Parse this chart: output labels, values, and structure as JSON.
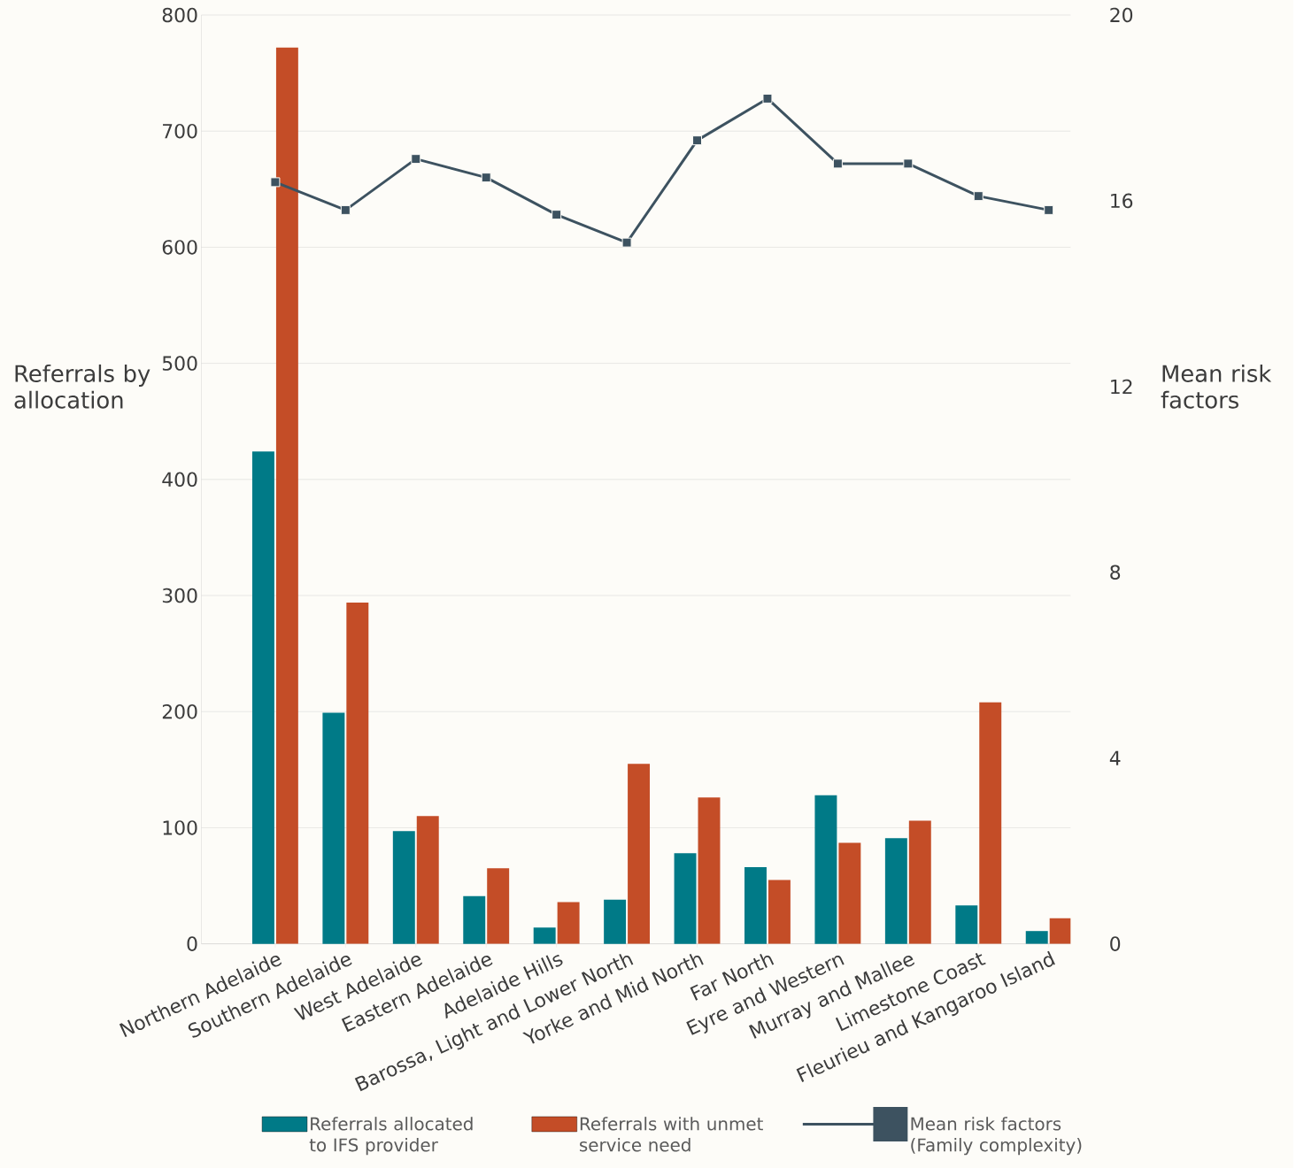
{
  "chart_data": {
    "type": "bar",
    "categories": [
      "Northern Adelaide",
      "Southern Adelaide",
      "West Adelaide",
      "Eastern Adelaide",
      "Adelaide Hills",
      "Barossa, Light and Lower North",
      "Yorke and Mid North",
      "Far North",
      "Eyre and Western",
      "Murray and Mallee",
      "Limestone Coast",
      "Fleurieu and Kangaroo Island"
    ],
    "series": [
      {
        "name": "Referrals allocated to IFS provider",
        "color": "#007a87",
        "values": [
          424,
          199,
          97,
          41,
          14,
          38,
          78,
          66,
          128,
          91,
          33,
          11
        ]
      },
      {
        "name": "Referrals with unmet service need",
        "color": "#c44d27",
        "values": [
          772,
          294,
          110,
          65,
          36,
          155,
          126,
          55,
          87,
          106,
          208,
          22
        ]
      },
      {
        "name": "Mean risk factors (Family complexity)",
        "color": "#3d5260",
        "type": "line",
        "axis": "y2",
        "marker": "square",
        "line_style": "solid",
        "values": [
          16.4,
          15.8,
          16.9,
          16.5,
          15.7,
          15.1,
          17.3,
          18.2,
          16.8,
          16.8,
          16.1,
          15.8
        ]
      }
    ],
    "ylabel": "Referrals by allocation",
    "y2label": "Mean risk factors",
    "ylim": [
      0,
      800
    ],
    "yticks": [
      0,
      100,
      200,
      300,
      400,
      500,
      600,
      700,
      800
    ],
    "y2lim": [
      0,
      20
    ],
    "y2ticks": [
      0,
      4,
      8,
      12,
      16,
      20
    ],
    "grid": "y",
    "legend": "bottom"
  }
}
